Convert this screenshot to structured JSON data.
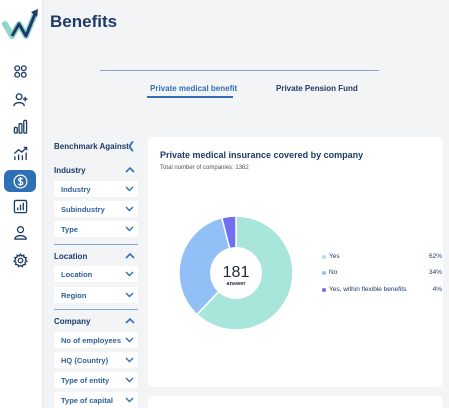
{
  "page": {
    "title": "Benefits"
  },
  "tabs": [
    {
      "label": "Private medical benefit",
      "active": true
    },
    {
      "label": "Private Pension Fund",
      "active": false
    }
  ],
  "nav": {
    "items": [
      {
        "icon": "dashboard-icon"
      },
      {
        "icon": "add-user-icon"
      },
      {
        "icon": "bar-chart-icon"
      },
      {
        "icon": "trend-chart-icon"
      },
      {
        "icon": "dollar-icon",
        "active": true
      },
      {
        "icon": "report-icon"
      },
      {
        "icon": "user-icon"
      },
      {
        "icon": "settings-icon"
      }
    ]
  },
  "filters": {
    "header": "Benchmark Against",
    "sections": [
      {
        "label": "Industry",
        "items": [
          "Industry",
          "Subindustry",
          "Type"
        ]
      },
      {
        "label": "Location",
        "items": [
          "Location",
          "Region"
        ]
      },
      {
        "label": "Company",
        "items": [
          "No of employees",
          "HQ (Country)",
          "Type of entity",
          "Type of capital"
        ]
      }
    ]
  },
  "card": {
    "title": "Private medical insurance covered by company",
    "subtitle": "Total number of companies: 1362"
  },
  "chart_data": {
    "type": "pie",
    "title": "Private medical insurance covered by company",
    "center_value": "181",
    "center_label": "answer",
    "categories": [
      "Yes",
      "No",
      "Yes, within flexible benefits"
    ],
    "values": [
      62,
      34,
      4
    ],
    "value_labels": [
      "62%",
      "34%",
      "4%"
    ],
    "colors": [
      "#a8e6dc",
      "#93bff7",
      "#6f6ff0"
    ],
    "legend_position": "right"
  }
}
